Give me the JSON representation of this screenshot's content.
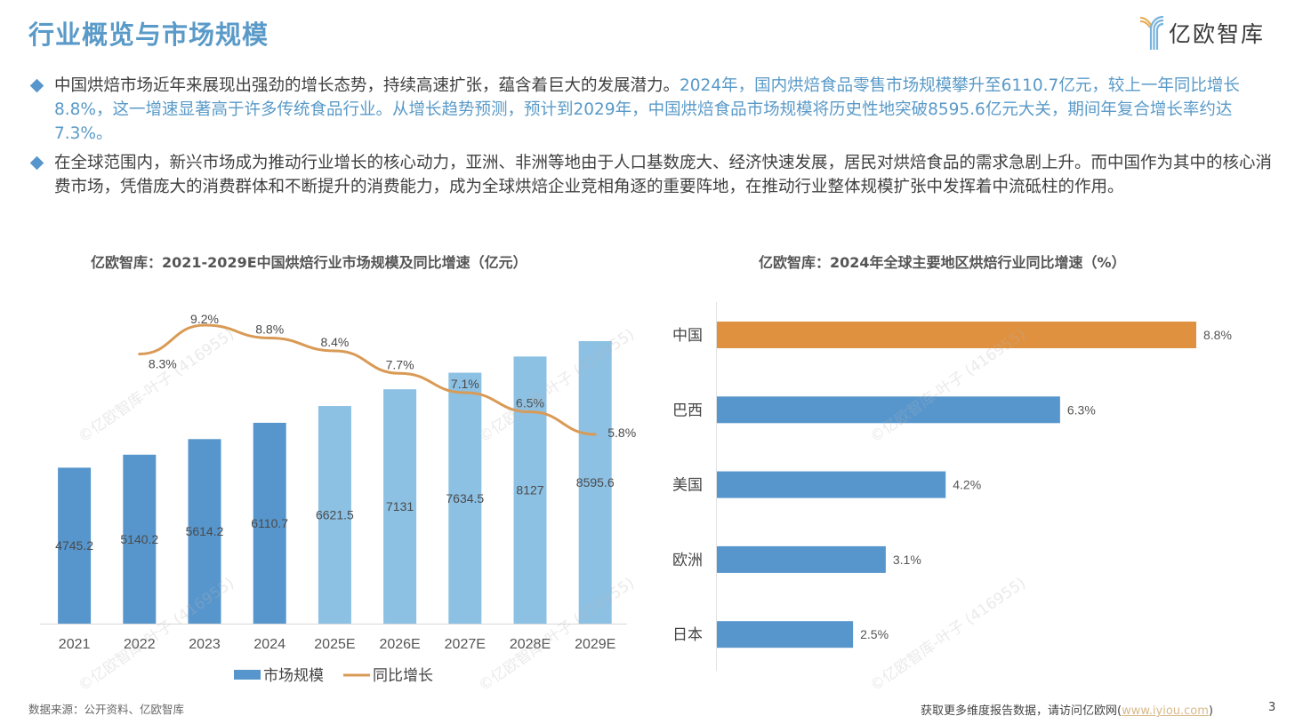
{
  "page": {
    "title": "行业概览与市场规模",
    "logo_text": "亿欧智库",
    "page_number": "3"
  },
  "bullets": [
    {
      "segments": [
        {
          "text": "中国烘焙市场近年来展现出强劲的增长态势，持续高速扩张，蕴含着巨大的发展潜力。",
          "highlight": false
        },
        {
          "text": "2024年，国内烘焙食品零售市场规模攀升至6110.7亿元，较上一年同比增长8.8%，这一增速显著高于许多传统食品行业。从增长趋势预测，预计到2029年，中国烘焙食品市场规模将历史性地突破8595.6亿元大关，期间年复合增长率约达7.3%。",
          "highlight": true
        }
      ]
    },
    {
      "segments": [
        {
          "text": "在全球范围内，新兴市场成为推动行业增长的核心动力，亚洲、非洲等地由于人口基数庞大、经济快速发展，居民对烘焙食品的需求急剧上升。而中国作为其中的核心消费市场，凭借庞大的消费群体和不断提升的消费能力，成为全球烘焙企业竞相角逐的重要阵地，在推动行业整体规模扩张中发挥着中流砥柱的作用。",
          "highlight": false
        }
      ]
    }
  ],
  "footer": {
    "source": "数据来源：公开资料、亿欧智库",
    "more_prefix": "获取更多维度报告数据，请访问亿欧网(",
    "more_link": "www.iyiou.com",
    "more_suffix": ")"
  },
  "watermark_text": "©亿欧智库-叶子 (416955)",
  "colors": {
    "title": "#5a9ac8",
    "bar_actual": "#5796cd",
    "bar_forecast": "#8cc1e4",
    "line": "#d99a55",
    "china_bar": "#e0913f",
    "region_bar": "#5796cd"
  },
  "chart_data": [
    {
      "type": "bar",
      "title": "亿欧智库：2021-2029E中国烘焙行业市场规模及同比增速（亿元）",
      "categories": [
        "2021",
        "2022",
        "2023",
        "2024",
        "2025E",
        "2026E",
        "2027E",
        "2028E",
        "2029E"
      ],
      "series": [
        {
          "name": "市场规模",
          "type": "bar",
          "values": [
            4745.2,
            5140.2,
            5614.2,
            6110.7,
            6621.5,
            7131,
            7634.5,
            8127,
            8595.6
          ],
          "value_labels": [
            "4745.2",
            "5140.2",
            "5614.2",
            "6110.7",
            "6621.5",
            "7131",
            "7634.5",
            "8127",
            "8595.6"
          ]
        },
        {
          "name": "同比增长",
          "type": "line",
          "values": [
            null,
            8.3,
            9.2,
            8.8,
            8.4,
            7.7,
            7.1,
            6.5,
            5.8
          ],
          "value_labels": [
            "",
            "8.3%",
            "9.2%",
            "8.8%",
            "8.4%",
            "7.7%",
            "7.1%",
            "6.5%",
            "5.8%"
          ]
        }
      ],
      "forecast_from_index": 4,
      "legend": [
        "市场规模",
        "同比增长"
      ],
      "legend_position": "bottom",
      "xlabel": "",
      "ylabel": "",
      "grid": false
    },
    {
      "type": "bar",
      "orientation": "horizontal",
      "title": "亿欧智库：2024年全球主要地区烘焙行业同比增速（%）",
      "categories": [
        "中国",
        "巴西",
        "美国",
        "欧洲",
        "日本"
      ],
      "values": [
        8.8,
        6.3,
        4.2,
        3.1,
        2.5
      ],
      "value_labels": [
        "8.8%",
        "6.3%",
        "4.2%",
        "3.1%",
        "2.5%"
      ],
      "highlight_index": 0,
      "xlim": [
        0,
        8.8
      ],
      "grid": false
    }
  ]
}
